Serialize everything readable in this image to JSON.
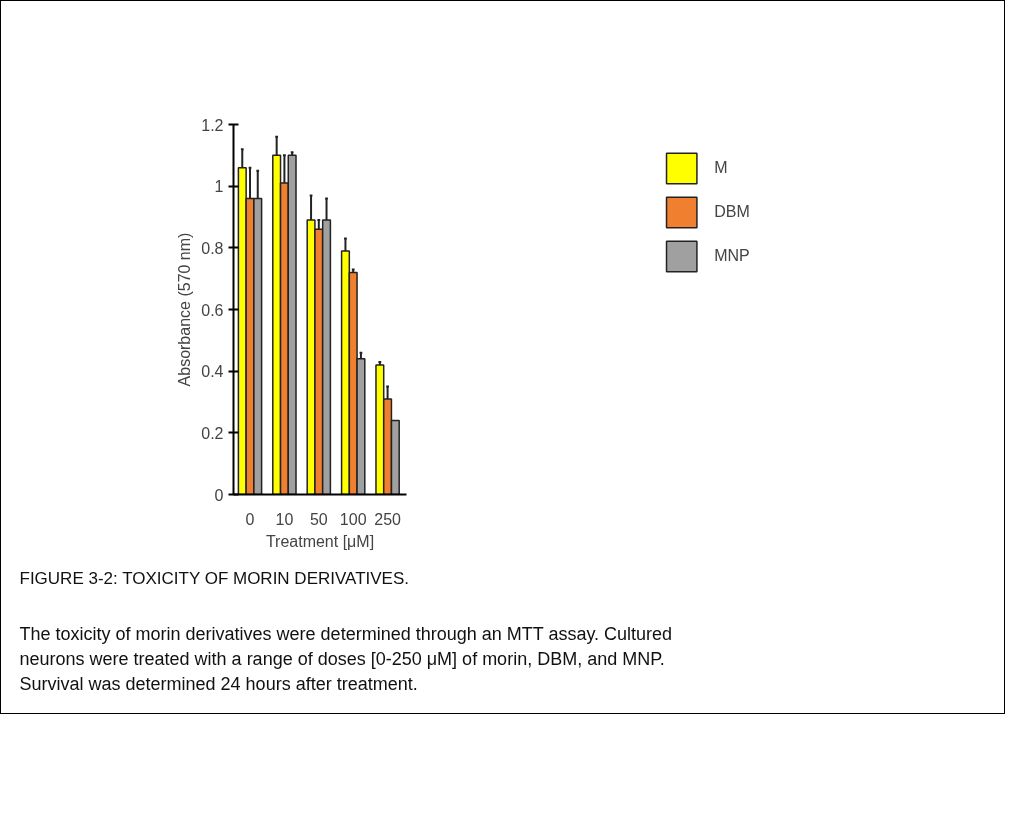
{
  "chart_data": {
    "type": "bar",
    "xlabel": "Treatment [μM]",
    "ylabel": "Absorbance (570 nm)",
    "categories": [
      "0",
      "10",
      "50",
      "100",
      "250"
    ],
    "series": [
      {
        "name": "M",
        "color": "#ffff00",
        "values": [
          1.06,
          1.1,
          0.89,
          0.79,
          0.42
        ],
        "errors": [
          [
            1.06,
            1.12
          ],
          [
            1.1,
            1.16
          ],
          [
            0.89,
            0.97
          ],
          [
            0.79,
            0.83
          ],
          [
            0.42,
            0.43
          ]
        ]
      },
      {
        "name": "DBM",
        "color": "#f07f30",
        "values": [
          0.96,
          1.01,
          0.86,
          0.72,
          0.31
        ],
        "errors": [
          [
            0.96,
            1.06
          ],
          [
            1.01,
            1.1
          ],
          [
            0.86,
            0.89
          ],
          [
            0.72,
            0.73
          ],
          [
            0.31,
            0.35
          ]
        ]
      },
      {
        "name": "MNP",
        "color": "#a0a0a0",
        "values": [
          0.96,
          1.1,
          0.89,
          0.44,
          0.24
        ],
        "errors": [
          [
            0.96,
            1.05
          ],
          [
            1.1,
            1.11
          ],
          [
            0.89,
            0.96
          ],
          [
            0.44,
            0.46
          ],
          null
        ]
      }
    ],
    "ylim": [
      0,
      1.2
    ],
    "yticks": [
      0,
      0.2,
      0.4,
      0.6,
      0.8,
      1,
      1.2
    ],
    "grid": false,
    "legend": "top right",
    "annotations": [
      "FIGURE 3-2: TOXICITY OF MORIN DERIVATIVES.",
      "The toxicity of morin derivatives were determined through an MTT assay.  Cultured\nneurons were treated with a range of doses [0-250 μM] of morin, DBM, and MNP.\nSurvival was determined 24 hours after treatment."
    ]
  }
}
